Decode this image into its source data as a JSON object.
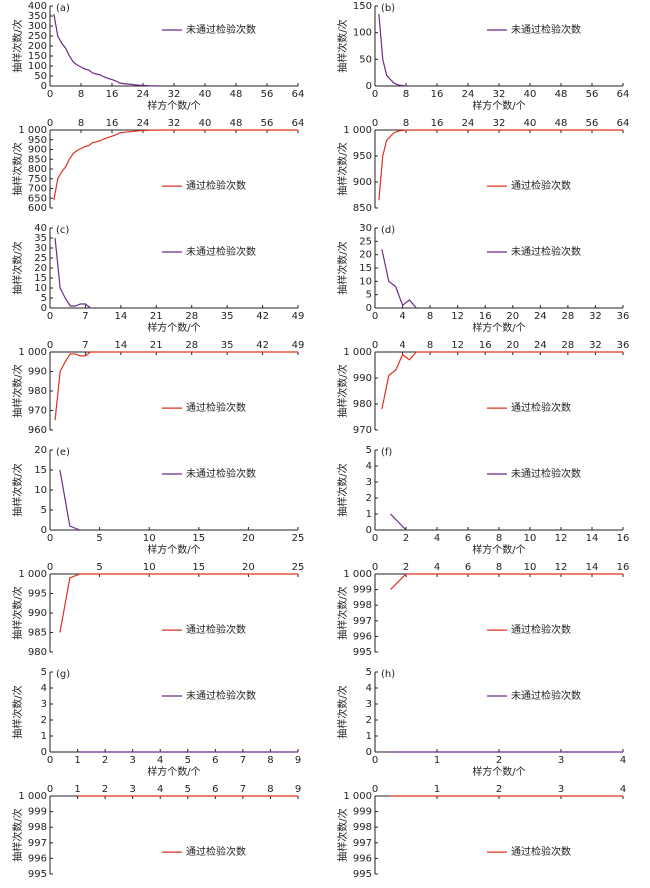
{
  "chart_data": [
    {
      "type": "line",
      "label": "(a)",
      "ylabel": "抽样次数/次",
      "xlabel": "样方个数/个",
      "xaxis": "bottom",
      "legend": "upper right",
      "x": [
        1,
        2,
        3,
        4,
        5,
        6,
        7,
        8,
        9,
        10,
        11,
        12,
        13,
        14,
        15,
        16,
        17,
        18,
        19,
        20,
        21,
        22,
        23,
        24,
        25,
        26,
        27,
        28
      ],
      "series": [
        {
          "name": "未通过检验次数",
          "color": "#6a2c8a",
          "values": [
            360,
            250,
            215,
            190,
            150,
            120,
            105,
            95,
            85,
            80,
            65,
            60,
            55,
            45,
            38,
            32,
            25,
            15,
            12,
            10,
            8,
            6,
            4,
            3,
            2,
            1,
            1,
            0
          ]
        }
      ],
      "xlim": [
        0,
        64
      ],
      "xticks": [
        0,
        8,
        16,
        24,
        32,
        40,
        48,
        56,
        64
      ],
      "ylim": [
        0,
        400
      ],
      "yticks": [
        0,
        50,
        100,
        150,
        200,
        250,
        300,
        350,
        400
      ]
    },
    {
      "type": "line",
      "ylabel": "抽样次数/次",
      "xaxis": "top",
      "legend": "lower right",
      "x": [
        1,
        2,
        3,
        4,
        5,
        6,
        7,
        8,
        9,
        10,
        11,
        12,
        13,
        14,
        15,
        16,
        17,
        18,
        19,
        20,
        21,
        22,
        23,
        24,
        25,
        26,
        27,
        28,
        64
      ],
      "series": [
        {
          "name": "通过检验次数",
          "color": "#e0301e",
          "values": [
            640,
            750,
            785,
            810,
            850,
            880,
            895,
            905,
            915,
            920,
            935,
            940,
            945,
            955,
            962,
            968,
            975,
            985,
            988,
            990,
            992,
            994,
            996,
            997,
            998,
            999,
            999,
            1000,
            1000
          ]
        }
      ],
      "xlim": [
        0,
        64
      ],
      "xticks": [
        0,
        8,
        16,
        24,
        32,
        40,
        48,
        56,
        64
      ],
      "ylim": [
        600,
        1000
      ],
      "yticks": [
        600,
        650,
        700,
        750,
        800,
        850,
        900,
        950,
        {
          "value": 1000,
          "label": "1 000"
        }
      ]
    },
    {
      "type": "line",
      "label": "(b)",
      "ylabel": "抽样次数/次",
      "xlabel": "样方个数/个",
      "xaxis": "bottom",
      "legend": "upper right",
      "x": [
        1,
        2,
        3,
        4,
        5,
        6,
        7,
        8
      ],
      "series": [
        {
          "name": "未通过检验次数",
          "color": "#6a2c8a",
          "values": [
            135,
            50,
            20,
            12,
            5,
            2,
            1,
            0
          ]
        }
      ],
      "xlim": [
        0,
        64
      ],
      "xticks": [
        0,
        8,
        16,
        24,
        32,
        40,
        48,
        56,
        64
      ],
      "ylim": [
        0,
        150
      ],
      "yticks": [
        0,
        50,
        100,
        150
      ]
    },
    {
      "type": "line",
      "ylabel": "抽样次数/次",
      "xaxis": "top",
      "legend": "lower right",
      "x": [
        1,
        2,
        3,
        4,
        5,
        6,
        7,
        8,
        64
      ],
      "series": [
        {
          "name": "通过检验次数",
          "color": "#e0301e",
          "values": [
            865,
            950,
            980,
            988,
            995,
            998,
            999,
            1000,
            1000
          ]
        }
      ],
      "xlim": [
        0,
        64
      ],
      "xticks": [
        0,
        8,
        16,
        24,
        32,
        40,
        48,
        56,
        64
      ],
      "ylim": [
        850,
        1000
      ],
      "yticks": [
        850,
        900,
        950,
        {
          "value": 1000,
          "label": "1 000"
        }
      ]
    },
    {
      "type": "line",
      "label": "(c)",
      "ylabel": "抽样次数/次",
      "xlabel": "样方个数/个",
      "xaxis": "bottom",
      "legend": "upper right",
      "x": [
        1,
        2,
        3,
        4,
        5,
        6,
        7,
        8
      ],
      "series": [
        {
          "name": "未通过检验次数",
          "color": "#6a2c8a",
          "values": [
            35,
            10,
            5,
            1,
            1,
            2,
            2,
            0
          ]
        }
      ],
      "xlim": [
        0,
        49
      ],
      "xticks": [
        0,
        7,
        14,
        21,
        28,
        35,
        42,
        49
      ],
      "ylim": [
        0,
        40
      ],
      "yticks": [
        0,
        5,
        10,
        15,
        20,
        25,
        30,
        35,
        40
      ]
    },
    {
      "type": "line",
      "ylabel": "抽样次数/次",
      "xaxis": "top",
      "legend": "lower right",
      "x": [
        1,
        2,
        3,
        4,
        5,
        6,
        7,
        8,
        49
      ],
      "series": [
        {
          "name": "通过检验次数",
          "color": "#e0301e",
          "values": [
            965,
            990,
            995,
            999,
            999,
            998,
            998,
            1000,
            1000
          ]
        }
      ],
      "xlim": [
        0,
        49
      ],
      "xticks": [
        0,
        7,
        14,
        21,
        28,
        35,
        42,
        49
      ],
      "ylim": [
        960,
        1000
      ],
      "yticks": [
        960,
        970,
        980,
        990,
        {
          "value": 1000,
          "label": "1 000"
        }
      ]
    },
    {
      "type": "line",
      "label": "(d)",
      "ylabel": "抽样次数/次",
      "xlabel": "样方个数/个",
      "xaxis": "bottom",
      "legend": "upper right",
      "x": [
        1,
        2,
        3,
        4,
        5,
        6
      ],
      "series": [
        {
          "name": "未通过检验次数",
          "color": "#6a2c8a",
          "values": [
            22,
            10,
            8,
            1,
            3,
            0
          ]
        }
      ],
      "xlim": [
        0,
        36
      ],
      "xticks": [
        0,
        4,
        8,
        12,
        16,
        20,
        24,
        28,
        32,
        36
      ],
      "ylim": [
        0,
        30
      ],
      "yticks": [
        0,
        5,
        10,
        15,
        20,
        25,
        30
      ]
    },
    {
      "type": "line",
      "ylabel": "抽样次数/次",
      "xaxis": "top",
      "legend": "lower right",
      "x": [
        1,
        2,
        3,
        4,
        5,
        6,
        36
      ],
      "series": [
        {
          "name": "通过检验次数",
          "color": "#e0301e",
          "values": [
            978,
            991,
            993,
            999,
            997,
            1000,
            1000
          ]
        }
      ],
      "xlim": [
        0,
        36
      ],
      "xticks": [
        0,
        4,
        8,
        12,
        16,
        20,
        24,
        28,
        32,
        36
      ],
      "ylim": [
        970,
        1000
      ],
      "yticks": [
        970,
        980,
        990,
        {
          "value": 1000,
          "label": "1 000"
        }
      ]
    },
    {
      "type": "line",
      "label": "(e)",
      "ylabel": "抽样次数/次",
      "xlabel": "样方个数/个",
      "xaxis": "bottom",
      "legend": "upper right",
      "x": [
        1,
        2,
        3
      ],
      "series": [
        {
          "name": "未通过检验次数",
          "color": "#6a2c8a",
          "values": [
            15,
            1,
            0
          ]
        }
      ],
      "xlim": [
        0,
        25
      ],
      "xticks": [
        0,
        5,
        10,
        15,
        20,
        25
      ],
      "ylim": [
        0,
        20
      ],
      "yticks": [
        0,
        5,
        10,
        15,
        20
      ]
    },
    {
      "type": "line",
      "ylabel": "抽样次数/次",
      "xaxis": "top",
      "legend": "lower right",
      "x": [
        1,
        2,
        3,
        25
      ],
      "series": [
        {
          "name": "通过检验次数",
          "color": "#e0301e",
          "values": [
            985,
            999,
            1000,
            1000
          ]
        }
      ],
      "xlim": [
        0,
        25
      ],
      "xticks": [
        0,
        5,
        10,
        15,
        20,
        25
      ],
      "ylim": [
        980,
        1000
      ],
      "yticks": [
        980,
        985,
        990,
        995,
        {
          "value": 1000,
          "label": "1 000"
        }
      ]
    },
    {
      "type": "line",
      "label": "(f)",
      "ylabel": "抽样次数/次",
      "xlabel": "样方个数/个",
      "xaxis": "bottom",
      "legend": "upper right",
      "x": [
        1,
        2
      ],
      "series": [
        {
          "name": "未通过检验次数",
          "color": "#6a2c8a",
          "values": [
            1,
            0
          ]
        }
      ],
      "xlim": [
        0,
        16
      ],
      "xticks": [
        0,
        2,
        4,
        6,
        8,
        10,
        12,
        14,
        16
      ],
      "ylim": [
        0,
        5
      ],
      "yticks": [
        0,
        1,
        2,
        3,
        4,
        5
      ]
    },
    {
      "type": "line",
      "ylabel": "抽样次数/次",
      "xaxis": "top",
      "legend": "lower right",
      "x": [
        1,
        2,
        16
      ],
      "series": [
        {
          "name": "通过检验次数",
          "color": "#e0301e",
          "values": [
            999,
            1000,
            1000
          ]
        }
      ],
      "xlim": [
        0,
        16
      ],
      "xticks": [
        0,
        2,
        4,
        6,
        8,
        10,
        12,
        14,
        16
      ],
      "ylim": [
        995,
        1000
      ],
      "yticks": [
        995,
        996,
        997,
        998,
        999,
        {
          "value": 1000,
          "label": "1 000"
        }
      ]
    },
    {
      "type": "line",
      "label": "(g)",
      "ylabel": "抽样次数/次",
      "xlabel": "样方个数/个",
      "xaxis": "bottom",
      "legend": "upper right",
      "x": [
        1,
        9
      ],
      "series": [
        {
          "name": "未通过检验次数",
          "color": "#6a2c8a",
          "values": [
            0,
            0
          ]
        }
      ],
      "xlim": [
        0,
        9
      ],
      "xticks": [
        0,
        1,
        2,
        3,
        4,
        5,
        6,
        7,
        8,
        9
      ],
      "ylim": [
        0,
        5
      ],
      "yticks": [
        0,
        1,
        2,
        3,
        4,
        5
      ]
    },
    {
      "type": "line",
      "ylabel": "抽样次数/次",
      "xaxis": "top",
      "legend": "lower right",
      "x": [
        1,
        9
      ],
      "series": [
        {
          "name": "通过检验次数",
          "color": "#e0301e",
          "values": [
            1000,
            1000
          ]
        }
      ],
      "xlim": [
        0,
        9
      ],
      "xticks": [
        0,
        1,
        2,
        3,
        4,
        5,
        6,
        7,
        8,
        9
      ],
      "ylim": [
        995,
        1000
      ],
      "yticks": [
        995,
        996,
        997,
        998,
        999,
        {
          "value": 1000,
          "label": "1 000"
        }
      ]
    },
    {
      "type": "line",
      "label": "(h)",
      "ylabel": "抽样次数/次",
      "xlabel": "样方个数/个",
      "xaxis": "bottom",
      "legend": "upper right",
      "x": [
        0.25,
        4
      ],
      "series": [
        {
          "name": "未通过检验次数",
          "color": "#6a2c8a",
          "values": [
            0,
            0
          ]
        }
      ],
      "xlim": [
        0,
        4
      ],
      "xticks": [
        0,
        1,
        2,
        3,
        4
      ],
      "ylim": [
        0,
        5
      ],
      "yticks": [
        0,
        1,
        2,
        3,
        4,
        5
      ]
    },
    {
      "type": "line",
      "ylabel": "抽样次数/次",
      "xaxis": "top",
      "legend": "lower right",
      "x": [
        0.25,
        4
      ],
      "series": [
        {
          "name": "通过检验次数",
          "color": "#e0301e",
          "values": [
            1000,
            1000
          ]
        }
      ],
      "xlim": [
        0,
        4
      ],
      "xticks": [
        0,
        1,
        2,
        3,
        4
      ],
      "ylim": [
        995,
        1000
      ],
      "yticks": [
        995,
        996,
        997,
        998,
        999,
        {
          "value": 1000,
          "label": "1 000"
        }
      ]
    }
  ]
}
